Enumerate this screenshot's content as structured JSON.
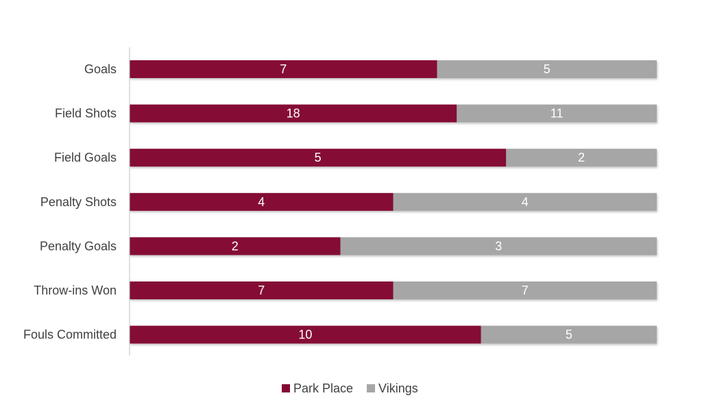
{
  "chart_data": {
    "type": "bar",
    "orientation": "horizontal",
    "stacking": "percent",
    "categories": [
      "Goals",
      "Field Shots",
      "Field Goals",
      "Penalty Shots",
      "Penalty Goals",
      "Throw-ins Won",
      "Fouls Committed"
    ],
    "series": [
      {
        "name": "Park Place",
        "color": "#850734",
        "values": [
          7,
          18,
          5,
          4,
          2,
          7,
          10
        ]
      },
      {
        "name": "Vikings",
        "color": "#A6A6A6",
        "values": [
          5,
          11,
          2,
          4,
          3,
          7,
          5
        ]
      }
    ],
    "title": "",
    "xlabel": "",
    "ylabel": "",
    "grid": false,
    "legend_position": "bottom",
    "data_labels": true
  }
}
